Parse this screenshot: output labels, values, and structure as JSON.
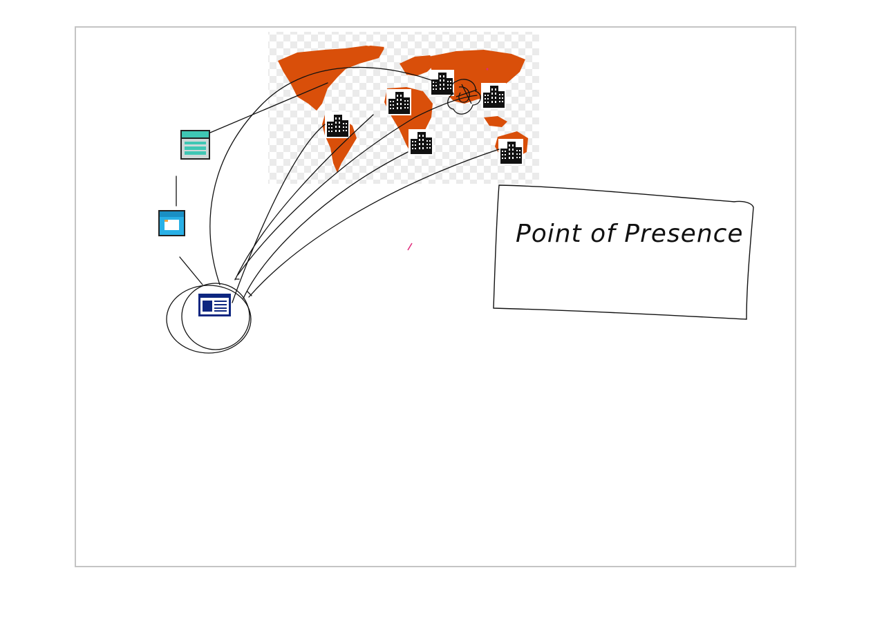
{
  "label_box": {
    "text": "Point of Presence"
  },
  "colors": {
    "map_fill": "#d94f0a",
    "map_checker": "#e9e9e9",
    "ink": "#111111",
    "highlight": "#e0287a",
    "navy": "#0d2680",
    "teal": "#3fc7b4",
    "sky": "#29b0e6"
  },
  "icons": {
    "data_center": "office-building-icon",
    "storage": "storage-server-icon",
    "application": "app-window-icon",
    "website": "web-page-icon",
    "world_map": "world-map-icon"
  }
}
